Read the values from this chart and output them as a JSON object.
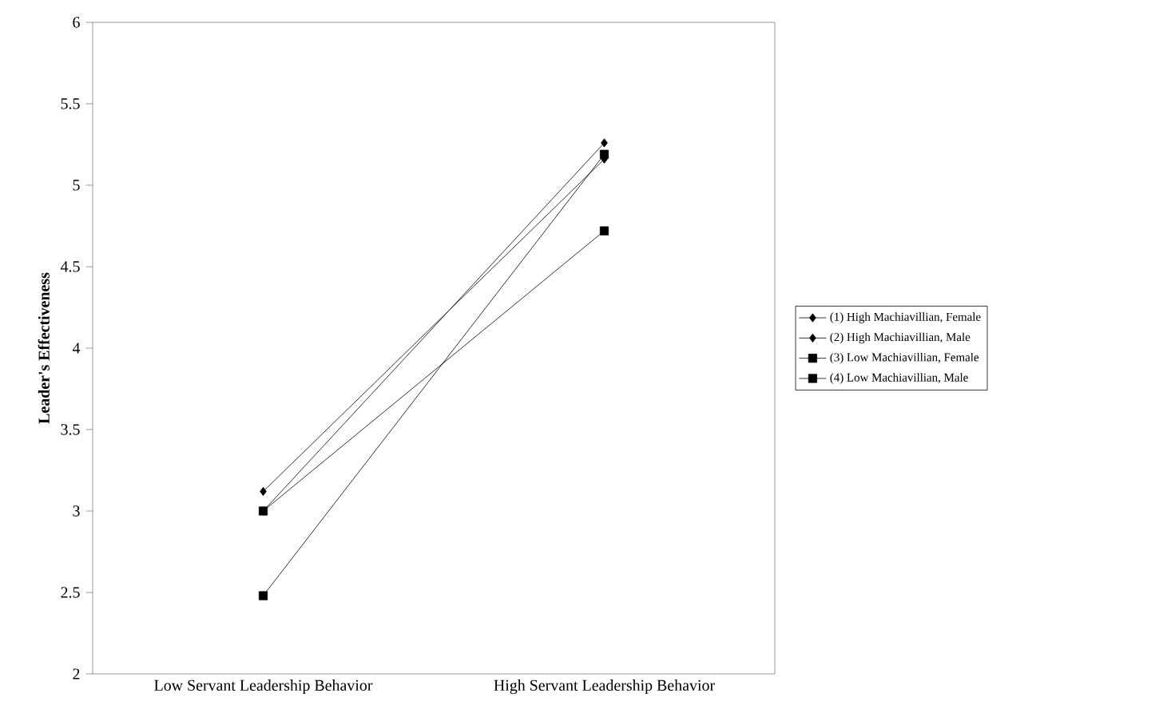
{
  "chart_data": {
    "type": "line",
    "ylabel": "Leader's Effectiveness",
    "categories": [
      "Low Servant Leadership Behavior",
      "High Servant Leadership Behavior"
    ],
    "ylim": [
      2,
      6
    ],
    "yticks": [
      2,
      2.5,
      3,
      3.5,
      4,
      4.5,
      5,
      5.5,
      6
    ],
    "legend": "right",
    "grid": false,
    "line_style": "solid",
    "series": [
      {
        "name": "(1) High Machiavillian, Female",
        "color": "#000000",
        "marker": "diamond",
        "values": [
          3.0,
          5.26
        ]
      },
      {
        "name": "(2) High Machiavillian, Male",
        "color": "#000000",
        "marker": "diamond",
        "values": [
          3.12,
          5.16
        ]
      },
      {
        "name": "(3) Low Machiavillian, Female",
        "color": "#000000",
        "marker": "square",
        "values": [
          3.0,
          4.72
        ]
      },
      {
        "name": "(4) Low Machiavillian, Male",
        "color": "#000000",
        "marker": "square",
        "values": [
          2.48,
          5.19
        ]
      }
    ]
  }
}
